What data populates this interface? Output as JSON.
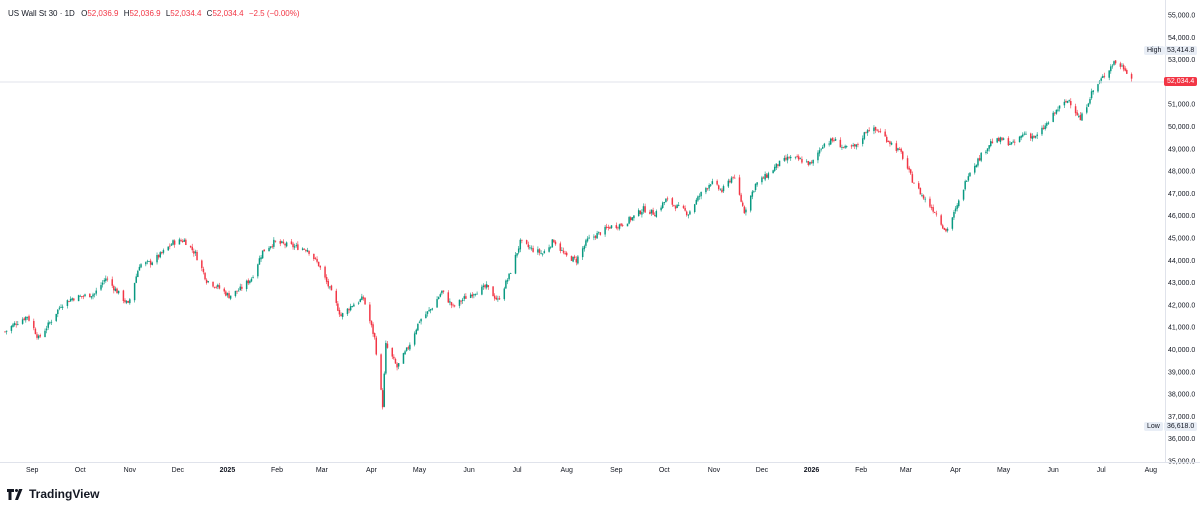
{
  "legend": {
    "symbol": "US Wall St 30 · 1D",
    "open_label": "O",
    "open": "52,036.9",
    "high_label": "H",
    "high": "52,036.9",
    "low_label": "L",
    "low": "52,034.4",
    "close_label": "C",
    "close": "52,034.4",
    "change": "−2.5 (−0.00%)"
  },
  "price_scale": {
    "high_tag_label": "High",
    "high_tag_value": "53,414.8",
    "low_tag_label": "Low",
    "low_tag_value": "36,618.0",
    "last_price": "52,034.4"
  },
  "branding": {
    "logo_text": "TradingView"
  },
  "colors": {
    "up": "#089981",
    "down": "#f23645",
    "grid": "#f0f3fa",
    "axis_text": "#131722"
  },
  "chart_data": {
    "type": "candlestick",
    "title": "",
    "xlabel": "",
    "ylabel": "",
    "ylim": [
      35000,
      55000
    ],
    "grid": false,
    "y_ticks": [
      "35,000.0",
      "36,000.0",
      "37,000.0",
      "38,000.0",
      "39,000.0",
      "40,000.0",
      "41,000.0",
      "42,000.0",
      "43,000.0",
      "44,000.0",
      "45,000.0",
      "46,000.0",
      "47,000.0",
      "48,000.0",
      "49,000.0",
      "50,000.0",
      "51,000.0",
      "52,000.0",
      "53,000.0",
      "54,000.0",
      "55,000.0"
    ],
    "x_ticks": [
      {
        "label": "Sep",
        "date": "2024-09-01"
      },
      {
        "label": "Oct",
        "date": "2024-10-01"
      },
      {
        "label": "Nov",
        "date": "2024-11-01"
      },
      {
        "label": "Dec",
        "date": "2024-12-01"
      },
      {
        "label": "2025",
        "date": "2025-01-01",
        "year": true
      },
      {
        "label": "Feb",
        "date": "2025-02-01"
      },
      {
        "label": "Mar",
        "date": "2025-03-01"
      },
      {
        "label": "Apr",
        "date": "2025-04-01"
      },
      {
        "label": "May",
        "date": "2025-05-01"
      },
      {
        "label": "Jun",
        "date": "2025-06-01"
      },
      {
        "label": "Jul",
        "date": "2025-07-01"
      },
      {
        "label": "Aug",
        "date": "2025-08-01"
      },
      {
        "label": "Sep",
        "date": "2025-09-01"
      },
      {
        "label": "Oct",
        "date": "2025-10-01"
      },
      {
        "label": "Nov",
        "date": "2025-11-01"
      },
      {
        "label": "Dec",
        "date": "2025-12-01"
      },
      {
        "label": "2026",
        "date": "2026-01-01",
        "year": true
      },
      {
        "label": "Feb",
        "date": "2026-02-01"
      },
      {
        "label": "Mar",
        "date": "2026-03-01"
      },
      {
        "label": "Apr",
        "date": "2026-04-01"
      },
      {
        "label": "May",
        "date": "2026-05-01"
      },
      {
        "label": "Jun",
        "date": "2026-06-01"
      },
      {
        "label": "Jul",
        "date": "2026-07-01"
      },
      {
        "label": "Aug",
        "date": "2026-08-01"
      }
    ],
    "series": [
      {
        "note": "closing levels (approximate) sampled through time",
        "points": [
          [
            "2024-08-15",
            40800
          ],
          [
            "2024-08-22",
            41200
          ],
          [
            "2024-08-29",
            41500
          ],
          [
            "2024-09-05",
            40500
          ],
          [
            "2024-09-12",
            41200
          ],
          [
            "2024-09-19",
            42000
          ],
          [
            "2024-09-26",
            42300
          ],
          [
            "2024-10-03",
            42400
          ],
          [
            "2024-10-10",
            42500
          ],
          [
            "2024-10-17",
            43200
          ],
          [
            "2024-10-24",
            42600
          ],
          [
            "2024-10-31",
            42000
          ],
          [
            "2024-11-07",
            43800
          ],
          [
            "2024-11-14",
            43900
          ],
          [
            "2024-11-21",
            44300
          ],
          [
            "2024-11-28",
            44800
          ],
          [
            "2024-12-05",
            44900
          ],
          [
            "2024-12-12",
            44300
          ],
          [
            "2024-12-19",
            43100
          ],
          [
            "2024-12-26",
            42800
          ],
          [
            "2025-01-02",
            42400
          ],
          [
            "2025-01-09",
            42700
          ],
          [
            "2025-01-16",
            43200
          ],
          [
            "2025-01-23",
            44400
          ],
          [
            "2025-01-30",
            44800
          ],
          [
            "2025-02-06",
            44700
          ],
          [
            "2025-02-13",
            44600
          ],
          [
            "2025-02-20",
            44500
          ],
          [
            "2025-02-27",
            43800
          ],
          [
            "2025-03-06",
            42700
          ],
          [
            "2025-03-13",
            41500
          ],
          [
            "2025-03-20",
            42000
          ],
          [
            "2025-03-27",
            42300
          ],
          [
            "2025-04-03",
            40500
          ],
          [
            "2025-04-08",
            37500
          ],
          [
            "2025-04-10",
            40200
          ],
          [
            "2025-04-17",
            39200
          ],
          [
            "2025-04-24",
            40100
          ],
          [
            "2025-05-01",
            41300
          ],
          [
            "2025-05-08",
            41800
          ],
          [
            "2025-05-15",
            42600
          ],
          [
            "2025-05-22",
            41900
          ],
          [
            "2025-05-29",
            42300
          ],
          [
            "2025-06-05",
            42600
          ],
          [
            "2025-06-12",
            42800
          ],
          [
            "2025-06-19",
            42200
          ],
          [
            "2025-06-26",
            43300
          ],
          [
            "2025-07-03",
            44800
          ],
          [
            "2025-07-10",
            44500
          ],
          [
            "2025-07-17",
            44300
          ],
          [
            "2025-07-24",
            44900
          ],
          [
            "2025-07-31",
            44200
          ],
          [
            "2025-08-07",
            44000
          ],
          [
            "2025-08-14",
            44900
          ],
          [
            "2025-08-21",
            45200
          ],
          [
            "2025-08-28",
            45500
          ],
          [
            "2025-09-04",
            45600
          ],
          [
            "2025-09-11",
            45900
          ],
          [
            "2025-09-18",
            46300
          ],
          [
            "2025-09-25",
            46100
          ],
          [
            "2025-10-02",
            46700
          ],
          [
            "2025-10-09",
            46400
          ],
          [
            "2025-10-16",
            46100
          ],
          [
            "2025-10-23",
            46900
          ],
          [
            "2025-10-30",
            47500
          ],
          [
            "2025-11-06",
            47100
          ],
          [
            "2025-11-13",
            47800
          ],
          [
            "2025-11-20",
            46200
          ],
          [
            "2025-11-27",
            47400
          ],
          [
            "2025-12-04",
            47800
          ],
          [
            "2025-12-11",
            48300
          ],
          [
            "2025-12-18",
            48600
          ],
          [
            "2025-12-25",
            48500
          ],
          [
            "2026-01-01",
            48300
          ],
          [
            "2026-01-08",
            49200
          ],
          [
            "2026-01-15",
            49400
          ],
          [
            "2026-01-22",
            49000
          ],
          [
            "2026-01-29",
            49100
          ],
          [
            "2026-02-05",
            49900
          ],
          [
            "2026-02-12",
            49800
          ],
          [
            "2026-02-19",
            49300
          ],
          [
            "2026-02-26",
            48800
          ],
          [
            "2026-03-05",
            47600
          ],
          [
            "2026-03-12",
            46800
          ],
          [
            "2026-03-19",
            46200
          ],
          [
            "2026-03-26",
            45300
          ],
          [
            "2026-04-02",
            46400
          ],
          [
            "2026-04-09",
            47900
          ],
          [
            "2026-04-16",
            48600
          ],
          [
            "2026-04-23",
            49300
          ],
          [
            "2026-04-30",
            49400
          ],
          [
            "2026-05-07",
            49200
          ],
          [
            "2026-05-14",
            49700
          ],
          [
            "2026-05-21",
            49500
          ],
          [
            "2026-05-28",
            50100
          ],
          [
            "2026-06-04",
            50800
          ],
          [
            "2026-06-11",
            51200
          ],
          [
            "2026-06-18",
            50300
          ],
          [
            "2026-06-25",
            51500
          ],
          [
            "2026-07-02",
            52200
          ],
          [
            "2026-07-09",
            52900
          ],
          [
            "2026-07-16",
            52600
          ],
          [
            "2026-07-21",
            52034
          ]
        ]
      }
    ]
  }
}
